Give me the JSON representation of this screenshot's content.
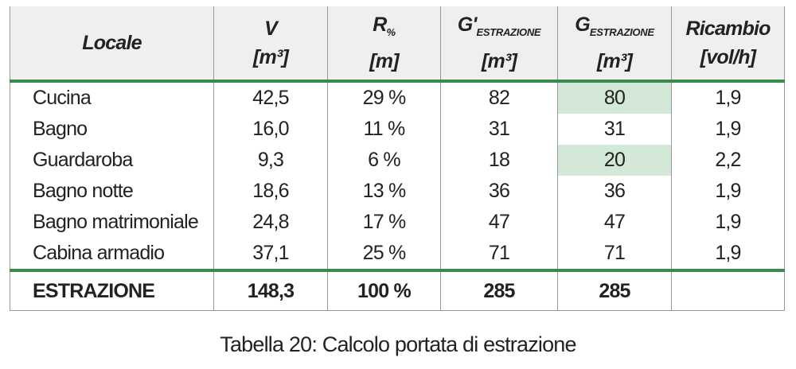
{
  "table": {
    "header": [
      {
        "label": "Locale"
      },
      {
        "label": "V",
        "unit": "[m³]"
      },
      {
        "label": "R",
        "sub": "%",
        "unit": "[m]"
      },
      {
        "label": "G'",
        "sub": "ESTRAZIONE",
        "unit": "[m³]"
      },
      {
        "label": "G",
        "sub": "ESTRAZIONE",
        "unit": "[m³]"
      },
      {
        "label": "Ricambio",
        "unit": "[vol/h]"
      }
    ],
    "rows": [
      [
        "Cucina",
        "42,5",
        "29 %",
        "82",
        "80",
        "1,9"
      ],
      [
        "Bagno",
        "16,0",
        "11 %",
        "31",
        "31",
        "1,9"
      ],
      [
        "Guardaroba",
        "9,3",
        "6 %",
        "18",
        "20",
        "2,2"
      ],
      [
        "Bagno notte",
        "18,6",
        "13 %",
        "36",
        "36",
        "1,9"
      ],
      [
        "Bagno matrimoniale",
        "24,8",
        "17 %",
        "47",
        "47",
        "1,9"
      ],
      [
        "Cabina armadio",
        "37,1",
        "25 %",
        "71",
        "71",
        "1,9"
      ]
    ],
    "total": [
      "ESTRAZIONE",
      "148,3",
      "100 %",
      "285",
      "285"
    ],
    "highlight_color": "#d3e8d6",
    "highlighted_cells": [
      [
        0,
        4
      ],
      [
        2,
        4
      ]
    ]
  },
  "caption": "Tabella 20: Calcolo portata di estrazione"
}
